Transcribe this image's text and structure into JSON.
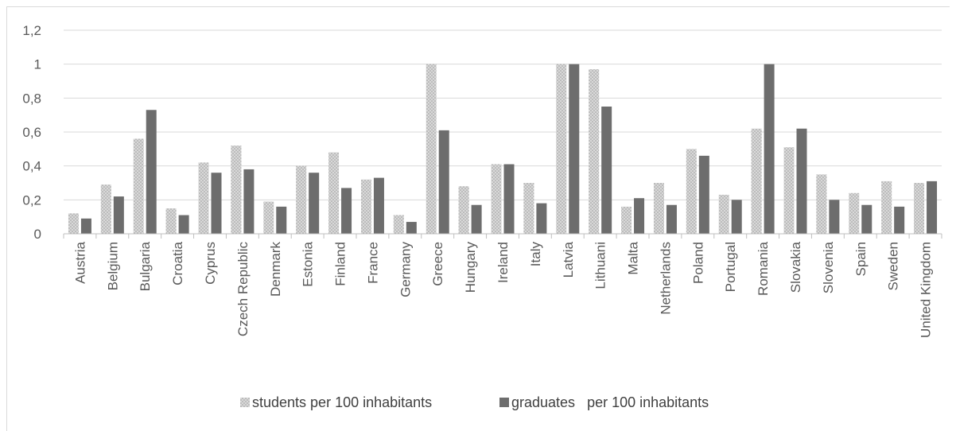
{
  "chart_data": {
    "type": "bar",
    "categories": [
      "Austria",
      "Belgium",
      "Bulgaria",
      "Croatia",
      "Cyprus",
      "Czech Republic",
      "Denmark",
      "Estonia",
      "Finland",
      "France",
      "Germany",
      "Greece",
      "Hungary",
      "Ireland",
      "Italy",
      "Latvia",
      "Lithuani",
      "Malta",
      "Netherlands",
      "Poland",
      "Portugal",
      "Romania",
      "Slovakia",
      "Slovenia",
      "Spain",
      "Sweden",
      "United Kingdom"
    ],
    "series": [
      {
        "name": "students per 100 inhabitants",
        "pattern": "dotted-light-gray",
        "color": "#c8c8c8",
        "values": [
          0.12,
          0.29,
          0.56,
          0.15,
          0.42,
          0.52,
          0.19,
          0.4,
          0.48,
          0.32,
          0.11,
          1.0,
          0.28,
          0.41,
          0.3,
          1.0,
          0.97,
          0.16,
          0.3,
          0.5,
          0.23,
          0.62,
          0.51,
          0.35,
          0.24,
          0.31,
          0.3
        ]
      },
      {
        "name": "graduates   per 100 inhabitants",
        "color": "#6d6d6d",
        "values": [
          0.09,
          0.22,
          0.73,
          0.11,
          0.36,
          0.38,
          0.16,
          0.36,
          0.27,
          0.33,
          0.07,
          0.61,
          0.17,
          0.41,
          0.18,
          1.0,
          0.75,
          0.21,
          0.17,
          0.46,
          0.2,
          1.0,
          0.62,
          0.2,
          0.17,
          0.16,
          0.31
        ]
      }
    ],
    "y_ticks": [
      "0",
      "0,2",
      "0,4",
      "0,6",
      "0,8",
      "1",
      "1,2"
    ],
    "ylim": [
      0,
      1.2
    ],
    "grid": true,
    "legend_position": "bottom"
  }
}
